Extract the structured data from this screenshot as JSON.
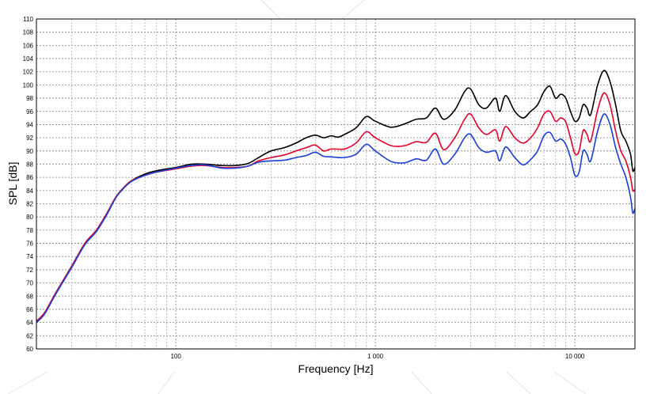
{
  "chart_data": {
    "type": "line",
    "title": "",
    "xlabel": "Frequency [Hz]",
    "ylabel": "SPL [dB]",
    "x_scale": "log",
    "xlim": [
      20,
      20000
    ],
    "ylim": [
      60,
      110
    ],
    "y_ticks": [
      60,
      62,
      64,
      66,
      68,
      70,
      72,
      74,
      76,
      78,
      80,
      82,
      84,
      86,
      88,
      90,
      92,
      94,
      96,
      98,
      100,
      102,
      104,
      106,
      108,
      110
    ],
    "x_ticks": [
      {
        "value": 100,
        "label": "100"
      },
      {
        "value": 1000,
        "label": "1 000"
      },
      {
        "value": 10000,
        "label": "10 000"
      }
    ],
    "grid": true,
    "legend": "none",
    "series": [
      {
        "color": "#000000",
        "points": [
          [
            20,
            64.2
          ],
          [
            22,
            65.5
          ],
          [
            25,
            68.5
          ],
          [
            30,
            72.5
          ],
          [
            35,
            76
          ],
          [
            40,
            78
          ],
          [
            45,
            80.5
          ],
          [
            50,
            83
          ],
          [
            55,
            84.5
          ],
          [
            60,
            85.5
          ],
          [
            70,
            86.5
          ],
          [
            80,
            87
          ],
          [
            100,
            87.5
          ],
          [
            120,
            88
          ],
          [
            140,
            88
          ],
          [
            170,
            87.8
          ],
          [
            200,
            87.8
          ],
          [
            230,
            88.1
          ],
          [
            260,
            89
          ],
          [
            300,
            90
          ],
          [
            350,
            90.5
          ],
          [
            400,
            91.2
          ],
          [
            450,
            92
          ],
          [
            500,
            92.4
          ],
          [
            550,
            92
          ],
          [
            600,
            92.3
          ],
          [
            650,
            92.1
          ],
          [
            700,
            92.5
          ],
          [
            800,
            93.5
          ],
          [
            900,
            95.2
          ],
          [
            1000,
            94.5
          ],
          [
            1200,
            93.6
          ],
          [
            1400,
            94.1
          ],
          [
            1600,
            94.8
          ],
          [
            1800,
            95
          ],
          [
            2000,
            96.5
          ],
          [
            2200,
            94.8
          ],
          [
            2500,
            96.2
          ],
          [
            2800,
            99
          ],
          [
            3000,
            99.4
          ],
          [
            3300,
            97
          ],
          [
            3600,
            96.5
          ],
          [
            4000,
            98
          ],
          [
            4200,
            96
          ],
          [
            4500,
            98.4
          ],
          [
            5000,
            96
          ],
          [
            5500,
            95
          ],
          [
            6000,
            96
          ],
          [
            6500,
            97
          ],
          [
            7000,
            99
          ],
          [
            7500,
            99.8
          ],
          [
            8000,
            98
          ],
          [
            8500,
            98.6
          ],
          [
            9000,
            98
          ],
          [
            9500,
            96
          ],
          [
            10000,
            94.5
          ],
          [
            10500,
            95
          ],
          [
            11000,
            97
          ],
          [
            11500,
            96.5
          ],
          [
            12000,
            95.5
          ],
          [
            13000,
            100
          ],
          [
            14000,
            102.2
          ],
          [
            15000,
            100.5
          ],
          [
            16000,
            97
          ],
          [
            17000,
            93
          ],
          [
            18000,
            91.5
          ],
          [
            19000,
            89.5
          ],
          [
            19500,
            87
          ],
          [
            20000,
            87.5
          ]
        ]
      },
      {
        "color": "#e8002a",
        "points": [
          [
            20,
            64.2
          ],
          [
            22,
            65.5
          ],
          [
            25,
            68.5
          ],
          [
            30,
            72.5
          ],
          [
            35,
            76
          ],
          [
            40,
            78
          ],
          [
            45,
            80.5
          ],
          [
            50,
            83
          ],
          [
            55,
            84.5
          ],
          [
            60,
            85.5
          ],
          [
            70,
            86.3
          ],
          [
            80,
            86.8
          ],
          [
            100,
            87.3
          ],
          [
            120,
            87.7
          ],
          [
            140,
            87.8
          ],
          [
            170,
            87.5
          ],
          [
            200,
            87.5
          ],
          [
            230,
            87.7
          ],
          [
            260,
            88.5
          ],
          [
            300,
            89
          ],
          [
            350,
            89.4
          ],
          [
            400,
            90
          ],
          [
            450,
            90.5
          ],
          [
            500,
            90.9
          ],
          [
            550,
            90
          ],
          [
            600,
            90.3
          ],
          [
            700,
            90.3
          ],
          [
            800,
            91.2
          ],
          [
            900,
            92.9
          ],
          [
            1000,
            92
          ],
          [
            1200,
            90.8
          ],
          [
            1400,
            90.8
          ],
          [
            1600,
            91.4
          ],
          [
            1800,
            91.3
          ],
          [
            2000,
            92.7
          ],
          [
            2200,
            90.2
          ],
          [
            2500,
            92
          ],
          [
            2800,
            94.8
          ],
          [
            3000,
            95.6
          ],
          [
            3300,
            93.5
          ],
          [
            3600,
            92.5
          ],
          [
            4000,
            93.2
          ],
          [
            4200,
            91.5
          ],
          [
            4500,
            93.7
          ],
          [
            5000,
            92
          ],
          [
            5500,
            91.2
          ],
          [
            6000,
            92
          ],
          [
            6500,
            93.5
          ],
          [
            7000,
            95.6
          ],
          [
            7500,
            96
          ],
          [
            8000,
            94.5
          ],
          [
            8500,
            95
          ],
          [
            9000,
            94.4
          ],
          [
            9500,
            92
          ],
          [
            10000,
            89.6
          ],
          [
            10500,
            90
          ],
          [
            11000,
            93.1
          ],
          [
            11500,
            92.5
          ],
          [
            12000,
            91.5
          ],
          [
            13000,
            96.2
          ],
          [
            14000,
            98.8
          ],
          [
            15000,
            97
          ],
          [
            16000,
            93
          ],
          [
            17000,
            90
          ],
          [
            18000,
            88.5
          ],
          [
            19000,
            86
          ],
          [
            19500,
            84
          ],
          [
            20000,
            84.2
          ]
        ]
      },
      {
        "color": "#1a3fd8",
        "points": [
          [
            20,
            64
          ],
          [
            22,
            65.3
          ],
          [
            25,
            68.3
          ],
          [
            30,
            72.3
          ],
          [
            35,
            75.8
          ],
          [
            40,
            77.8
          ],
          [
            45,
            80.3
          ],
          [
            50,
            82.9
          ],
          [
            55,
            84.4
          ],
          [
            60,
            85.4
          ],
          [
            70,
            86.3
          ],
          [
            80,
            86.8
          ],
          [
            100,
            87.4
          ],
          [
            120,
            87.8
          ],
          [
            140,
            87.9
          ],
          [
            170,
            87.4
          ],
          [
            200,
            87.4
          ],
          [
            230,
            87.7
          ],
          [
            260,
            88.3
          ],
          [
            300,
            88.5
          ],
          [
            350,
            88.6
          ],
          [
            400,
            89
          ],
          [
            450,
            89.3
          ],
          [
            500,
            89.8
          ],
          [
            550,
            89.2
          ],
          [
            600,
            89.1
          ],
          [
            700,
            89
          ],
          [
            800,
            89.5
          ],
          [
            900,
            91
          ],
          [
            1000,
            90
          ],
          [
            1200,
            88.4
          ],
          [
            1400,
            88.2
          ],
          [
            1600,
            88.8
          ],
          [
            1800,
            88.6
          ],
          [
            2000,
            90.3
          ],
          [
            2200,
            88
          ],
          [
            2500,
            89.5
          ],
          [
            2800,
            92
          ],
          [
            3000,
            92.5
          ],
          [
            3300,
            90.5
          ],
          [
            3600,
            89.8
          ],
          [
            4000,
            90
          ],
          [
            4200,
            88.5
          ],
          [
            4500,
            90.6
          ],
          [
            5000,
            89
          ],
          [
            5500,
            87.9
          ],
          [
            6000,
            88.7
          ],
          [
            6500,
            90
          ],
          [
            7000,
            92.3
          ],
          [
            7500,
            92.8
          ],
          [
            8000,
            91.5
          ],
          [
            8500,
            91.8
          ],
          [
            9000,
            91
          ],
          [
            9500,
            89
          ],
          [
            10000,
            86.3
          ],
          [
            10500,
            86.8
          ],
          [
            11000,
            90
          ],
          [
            11500,
            89.5
          ],
          [
            12000,
            88.5
          ],
          [
            13000,
            93
          ],
          [
            14000,
            95.6
          ],
          [
            15000,
            94
          ],
          [
            16000,
            90.5
          ],
          [
            17000,
            88
          ],
          [
            18000,
            86
          ],
          [
            19000,
            83
          ],
          [
            19500,
            80.6
          ],
          [
            20000,
            81.3
          ]
        ]
      }
    ]
  }
}
